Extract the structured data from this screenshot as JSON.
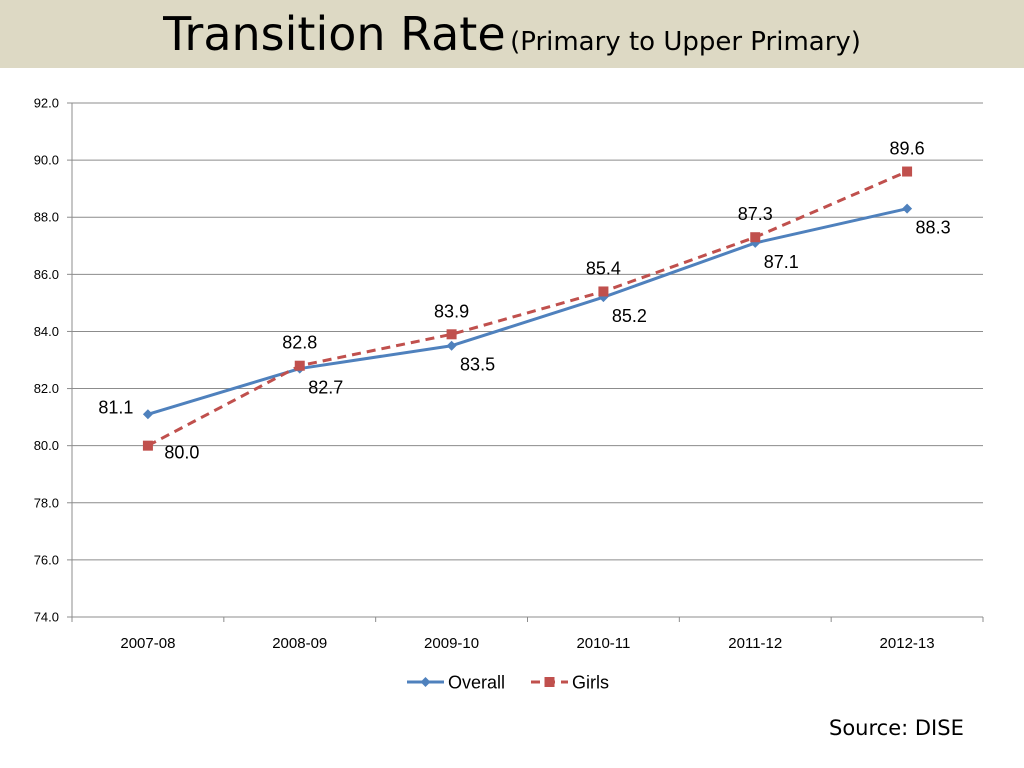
{
  "title": {
    "main": "Transition Rate",
    "sub": "(Primary to Upper Primary)"
  },
  "source": "Source: DISE",
  "chart_data": {
    "type": "line",
    "categories": [
      "2007-08",
      "2008-09",
      "2009-10",
      "2010-11",
      "2011-12",
      "2012-13"
    ],
    "ylim": [
      74.0,
      92.0
    ],
    "yticks": [
      "74.0",
      "76.0",
      "78.0",
      "80.0",
      "82.0",
      "84.0",
      "86.0",
      "88.0",
      "90.0",
      "92.0"
    ],
    "grid": true,
    "legend": "bottom",
    "series": [
      {
        "name": "Overall",
        "values": [
          81.1,
          82.7,
          83.5,
          85.2,
          87.1,
          88.3
        ],
        "labels": [
          "81.1",
          "82.7",
          "83.5",
          "85.2",
          "87.1",
          "88.3"
        ],
        "color": "#4f81bd",
        "marker": "diamond",
        "dash": "solid"
      },
      {
        "name": "Girls",
        "values": [
          80.0,
          82.8,
          83.9,
          85.4,
          87.3,
          89.6
        ],
        "labels": [
          "80.0",
          "82.8",
          "83.9",
          "85.4",
          "87.3",
          "89.6"
        ],
        "color": "#c0504d",
        "marker": "square",
        "dash": "dashed"
      }
    ]
  }
}
